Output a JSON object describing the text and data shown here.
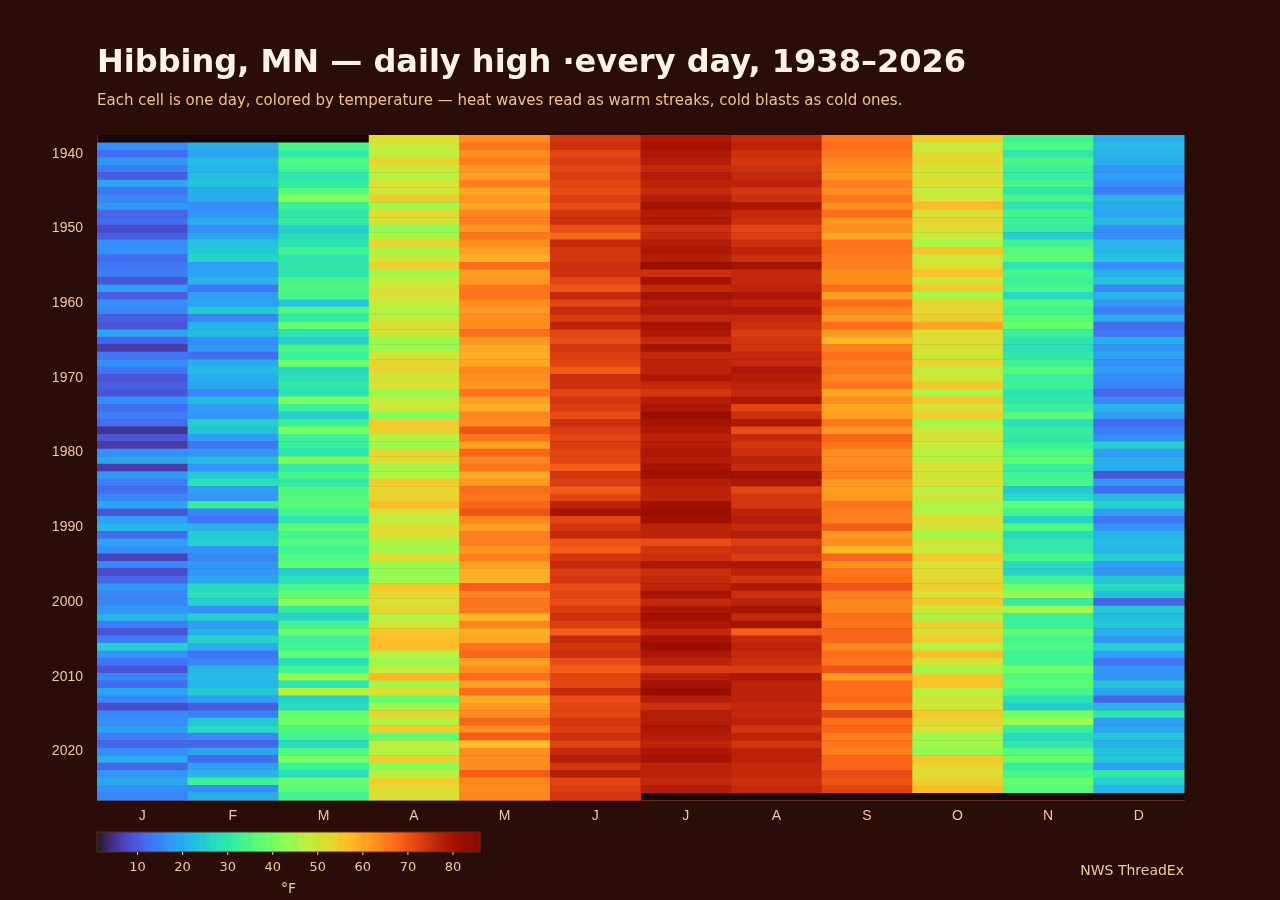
{
  "chart_data": {
    "type": "heatmap",
    "title": "Hibbing, MN — daily high ·every day, 1938–2026",
    "subtitle": "Each cell is one day, colored by temperature — heat waves read as warm streaks, cold blasts as cold ones.",
    "annotations": [
      "NWS ThreadEx"
    ],
    "clabel": "°F",
    "clim": [
      1,
      86
    ],
    "cticks": [
      10,
      20,
      30,
      40,
      50,
      60,
      70,
      80
    ],
    "categories": [
      "J",
      "F",
      "M",
      "A",
      "M",
      "J",
      "J",
      "A",
      "S",
      "O",
      "N",
      "D"
    ],
    "y_categories": [
      null,
      null,
      "1940",
      null,
      null,
      null,
      null,
      null,
      null,
      null,
      null,
      null,
      "1950",
      null,
      null,
      null,
      null,
      null,
      null,
      null,
      null,
      null,
      "1960",
      null,
      null,
      null,
      null,
      null,
      null,
      null,
      null,
      null,
      "1970",
      null,
      null,
      null,
      null,
      null,
      null,
      null,
      null,
      null,
      "1980",
      null,
      null,
      null,
      null,
      null,
      null,
      null,
      null,
      null,
      "1990",
      null,
      null,
      null,
      null,
      null,
      null,
      null,
      null,
      null,
      "2000",
      null,
      null,
      null,
      null,
      null,
      null,
      null,
      null,
      null,
      "2010",
      null,
      null,
      null,
      null,
      null,
      null,
      null,
      null,
      null,
      "2020",
      null,
      null,
      null,
      null,
      null,
      null
    ],
    "cells": [
      [
        null,
        null,
        null,
        52,
        63,
        74,
        79,
        76,
        66,
        55,
        33,
        20
      ],
      [
        16,
        20,
        34,
        49,
        66,
        75,
        80,
        77,
        67,
        48,
        35,
        22
      ],
      [
        12,
        19,
        30,
        48,
        63,
        72,
        79,
        75,
        66,
        52,
        30,
        21
      ],
      [
        17,
        22,
        35,
        53,
        65,
        73,
        78,
        74,
        64,
        53,
        34,
        20
      ],
      [
        14,
        21,
        33,
        50,
        62,
        72,
        76,
        75,
        63,
        50,
        32,
        17
      ],
      [
        10,
        22,
        29,
        47,
        61,
        73,
        78,
        76,
        62,
        51,
        31,
        18
      ],
      [
        19,
        23,
        31,
        51,
        65,
        72,
        77,
        77,
        65,
        52,
        34,
        16
      ],
      [
        13,
        20,
        36,
        50,
        60,
        71,
        76,
        74,
        63,
        48,
        30,
        14
      ],
      [
        15,
        20,
        41,
        55,
        62,
        73,
        78,
        75,
        66,
        51,
        34,
        21
      ],
      [
        17,
        16,
        32,
        45,
        60,
        71,
        80,
        79,
        63,
        57,
        29,
        20
      ],
      [
        11,
        17,
        30,
        52,
        64,
        74,
        78,
        76,
        67,
        51,
        33,
        19
      ],
      [
        12,
        20,
        31,
        51,
        65,
        75,
        79,
        75,
        62,
        53,
        32,
        22
      ],
      [
        8,
        16,
        25,
        42,
        62,
        71,
        75,
        72,
        63,
        52,
        31,
        16
      ],
      [
        10,
        19,
        27,
        46,
        66,
        68,
        76,
        73,
        60,
        49,
        25,
        16
      ],
      [
        16,
        23,
        29,
        53,
        63,
        76,
        78,
        75,
        66,
        46,
        33,
        21
      ],
      [
        16,
        24,
        33,
        46,
        61,
        74,
        79,
        77,
        66,
        56,
        36,
        21
      ],
      [
        12,
        26,
        29,
        49,
        59,
        74,
        78,
        75,
        65,
        49,
        37,
        23
      ],
      [
        13,
        18,
        30,
        54,
        67,
        75,
        82,
        80,
        65,
        52,
        29,
        16
      ],
      [
        14,
        19,
        29,
        45,
        61,
        75,
        75,
        76,
        63,
        56,
        34,
        20
      ],
      [
        9,
        21,
        34,
        48,
        62,
        72,
        80,
        76,
        63,
        50,
        32,
        23
      ],
      [
        18,
        13,
        35,
        51,
        66,
        70,
        76,
        77,
        67,
        54,
        34,
        15
      ],
      [
        10,
        18,
        34,
        51,
        66,
        76,
        80,
        79,
        61,
        46,
        27,
        21
      ],
      [
        16,
        19,
        23,
        49,
        63,
        72,
        78,
        77,
        67,
        53,
        35,
        17
      ],
      [
        15,
        24,
        35,
        46,
        62,
        76,
        79,
        79,
        64,
        53,
        33,
        14
      ],
      [
        10,
        15,
        30,
        48,
        63,
        73,
        76,
        76,
        62,
        54,
        36,
        20
      ],
      [
        9,
        21,
        38,
        52,
        63,
        77,
        80,
        75,
        67,
        60,
        38,
        12
      ],
      [
        19,
        22,
        29,
        50,
        67,
        72,
        79,
        73,
        62,
        52,
        32,
        13
      ],
      [
        11,
        16,
        25,
        44,
        62,
        71,
        76,
        74,
        58,
        52,
        29,
        20
      ],
      [
        6,
        17,
        34,
        44,
        60,
        74,
        80,
        74,
        65,
        51,
        28,
        17
      ],
      [
        13,
        12,
        32,
        50,
        59,
        73,
        76,
        76,
        67,
        50,
        30,
        19
      ],
      [
        16,
        20,
        39,
        53,
        60,
        72,
        77,
        76,
        65,
        53,
        33,
        16
      ],
      [
        13,
        22,
        27,
        53,
        64,
        69,
        77,
        79,
        66,
        48,
        36,
        18
      ],
      [
        9,
        20,
        28,
        50,
        63,
        75,
        79,
        78,
        64,
        50,
        32,
        16
      ],
      [
        10,
        19,
        30,
        51,
        62,
        75,
        76,
        77,
        66,
        55,
        32,
        15
      ],
      [
        9,
        15,
        28,
        44,
        66,
        72,
        74,
        76,
        60,
        46,
        29,
        11
      ],
      [
        16,
        22,
        40,
        48,
        61,
        74,
        78,
        79,
        63,
        55,
        30,
        15
      ],
      [
        12,
        18,
        32,
        50,
        59,
        73,
        79,
        72,
        60,
        51,
        32,
        21
      ],
      [
        14,
        17,
        25,
        42,
        64,
        71,
        82,
        75,
        61,
        54,
        36,
        18
      ],
      [
        12,
        25,
        32,
        55,
        63,
        75,
        80,
        79,
        66,
        45,
        28,
        12
      ],
      [
        5,
        23,
        40,
        54,
        70,
        73,
        79,
        71,
        62,
        49,
        31,
        14
      ],
      [
        9,
        18,
        32,
        47,
        66,
        72,
        77,
        76,
        68,
        51,
        30,
        16
      ],
      [
        6,
        13,
        31,
        44,
        61,
        73,
        78,
        74,
        66,
        49,
        32,
        25
      ],
      [
        16,
        17,
        29,
        53,
        68,
        72,
        79,
        75,
        63,
        47,
        35,
        18
      ],
      [
        19,
        22,
        40,
        52,
        64,
        72,
        78,
        77,
        63,
        48,
        37,
        20
      ],
      [
        6,
        17,
        30,
        45,
        66,
        69,
        80,
        76,
        64,
        51,
        31,
        20
      ],
      [
        17,
        24,
        34,
        46,
        60,
        74,
        81,
        81,
        65,
        50,
        33,
        9
      ],
      [
        14,
        28,
        30,
        55,
        62,
        73,
        78,
        79,
        62,
        51,
        34,
        17
      ],
      [
        12,
        18,
        35,
        53,
        67,
        69,
        77,
        72,
        61,
        48,
        24,
        12
      ],
      [
        15,
        17,
        36,
        54,
        66,
        72,
        77,
        74,
        62,
        50,
        27,
        22
      ],
      [
        19,
        31,
        36,
        57,
        68,
        77,
        81,
        74,
        66,
        46,
        37,
        26
      ],
      [
        9,
        15,
        33,
        51,
        70,
        80,
        82,
        77,
        65,
        47,
        33,
        18
      ],
      [
        18,
        13,
        29,
        48,
        64,
        72,
        81,
        78,
        65,
        52,
        26,
        13
      ],
      [
        21,
        21,
        37,
        52,
        61,
        74,
        77,
        76,
        69,
        50,
        35,
        17
      ],
      [
        12,
        24,
        33,
        52,
        65,
        76,
        77,
        78,
        62,
        45,
        27,
        21
      ],
      [
        18,
        25,
        36,
        46,
        65,
        70,
        71,
        73,
        63,
        50,
        30,
        22
      ],
      [
        16,
        17,
        33,
        45,
        62,
        69,
        74,
        75,
        58,
        49,
        30,
        21
      ],
      [
        7,
        15,
        35,
        52,
        65,
        74,
        75,
        73,
        68,
        55,
        34,
        25
      ],
      [
        15,
        17,
        37,
        44,
        61,
        76,
        79,
        79,
        63,
        51,
        27,
        18
      ],
      [
        8,
        17,
        25,
        43,
        59,
        73,
        75,
        77,
        66,
        52,
        26,
        17
      ],
      [
        11,
        19,
        28,
        44,
        59,
        74,
        76,
        74,
        67,
        53,
        33,
        24
      ],
      [
        17,
        27,
        34,
        55,
        69,
        71,
        77,
        79,
        70,
        54,
        39,
        27
      ],
      [
        15,
        28,
        37,
        53,
        64,
        72,
        80,
        75,
        65,
        51,
        43,
        23
      ],
      [
        15,
        25,
        42,
        51,
        66,
        71,
        76,
        77,
        64,
        55,
        31,
        11
      ],
      [
        17,
        16,
        31,
        53,
        66,
        73,
        79,
        80,
        64,
        50,
        45,
        24
      ],
      [
        21,
        25,
        26,
        47,
        58,
        75,
        81,
        76,
        67,
        46,
        32,
        22
      ],
      [
        14,
        18,
        33,
        50,
        64,
        73,
        79,
        80,
        66,
        54,
        32,
        24
      ],
      [
        9,
        20,
        38,
        55,
        59,
        69,
        76,
        69,
        68,
        52,
        37,
        20
      ],
      [
        14,
        26,
        32,
        57,
        60,
        76,
        80,
        76,
        68,
        54,
        34,
        17
      ],
      [
        25,
        20,
        33,
        57,
        66,
        74,
        82,
        77,
        64,
        47,
        35,
        25
      ],
      [
        17,
        13,
        37,
        48,
        68,
        75,
        79,
        76,
        67,
        57,
        33,
        18
      ],
      [
        13,
        15,
        28,
        44,
        61,
        71,
        77,
        75,
        66,
        51,
        33,
        13
      ],
      [
        9,
        21,
        33,
        48,
        63,
        69,
        73,
        73,
        70,
        45,
        39,
        17
      ],
      [
        15,
        22,
        43,
        58,
        67,
        72,
        78,
        79,
        62,
        55,
        35,
        17
      ],
      [
        12,
        21,
        29,
        45,
        61,
        72,
        80,
        77,
        67,
        56,
        37,
        23
      ],
      [
        19,
        24,
        47,
        51,
        67,
        76,
        83,
        77,
        67,
        48,
        34,
        19
      ],
      [
        15,
        18,
        26,
        38,
        59,
        71,
        78,
        77,
        68,
        50,
        28,
        11
      ],
      [
        8,
        10,
        27,
        44,
        62,
        72,
        75,
        76,
        64,
        50,
        25,
        21
      ],
      [
        15,
        14,
        38,
        53,
        63,
        72,
        78,
        76,
        72,
        55,
        39,
        29
      ],
      [
        16,
        24,
        39,
        47,
        68,
        74,
        78,
        77,
        67,
        53,
        44,
        18
      ],
      [
        18,
        27,
        35,
        54,
        63,
        73,
        79,
        74,
        68,
        51,
        32,
        19
      ],
      [
        14,
        15,
        33,
        37,
        69,
        75,
        78,
        77,
        65,
        44,
        27,
        23
      ],
      [
        11,
        11,
        27,
        48,
        57,
        72,
        77,
        74,
        66,
        45,
        29,
        20
      ],
      [
        16,
        19,
        35,
        47,
        63,
        76,
        79,
        77,
        65,
        43,
        36,
        23
      ],
      [
        20,
        12,
        40,
        54,
        63,
        78,
        80,
        77,
        68,
        55,
        38,
        24
      ],
      [
        11,
        18,
        32,
        42,
        63,
        74,
        77,
        76,
        68,
        53,
        31,
        18
      ],
      [
        17,
        21,
        28,
        47,
        69,
        78,
        77,
        76,
        71,
        52,
        34,
        30
      ],
      [
        19,
        32,
        38,
        54,
        64,
        72,
        76,
        75,
        70,
        54,
        38,
        25
      ],
      [
        16,
        16,
        36,
        52,
        63,
        73,
        78,
        76,
        72,
        57,
        36,
        21
      ],
      [
        15,
        20,
        33,
        51,
        64,
        74,
        null,
        null,
        null,
        null,
        null,
        null
      ]
    ]
  }
}
